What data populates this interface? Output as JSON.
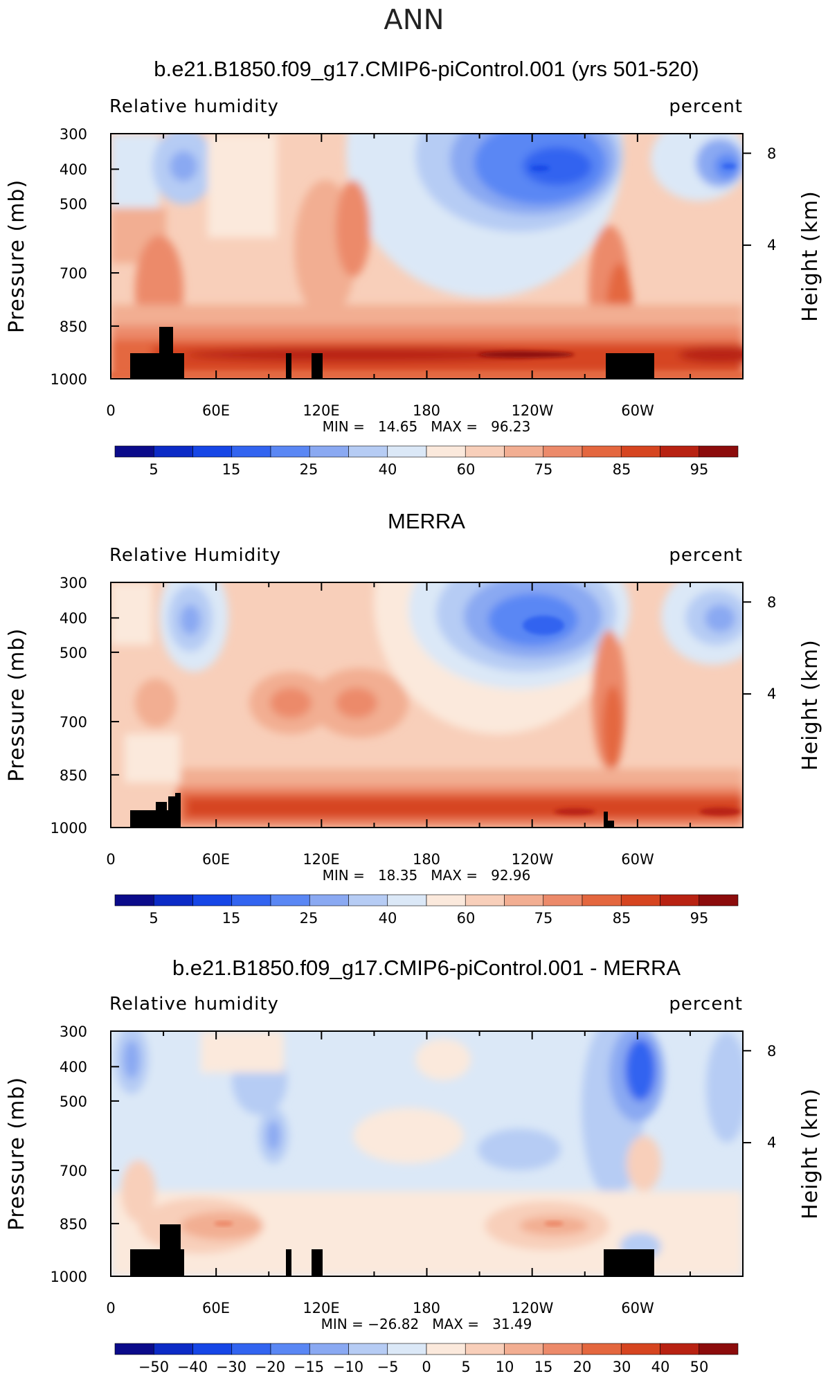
{
  "figure": {
    "supertitle": "ANN"
  },
  "colorbar_sequential": [
    "#0b0b8a",
    "#0c2bc6",
    "#1646e6",
    "#3264f0",
    "#5a87f4",
    "#8aa9f2",
    "#b6ccf4",
    "#dbe8f7",
    "#fbe9dc",
    "#f8cfba",
    "#f2ae92",
    "#ec8a6a",
    "#e4673f",
    "#d64520",
    "#b82212",
    "#8c0c0c"
  ],
  "colorbar_diverging": [
    "#0b0b8a",
    "#0c2bc6",
    "#1646e6",
    "#3264f0",
    "#5a87f4",
    "#8aa9f2",
    "#b6ccf4",
    "#dbe8f7",
    "#fbe9dc",
    "#f8cfba",
    "#f2ae92",
    "#ec8a6a",
    "#e4673f",
    "#d64520",
    "#b82212",
    "#8c0c0c"
  ],
  "chart_data": [
    {
      "type": "heatmap",
      "title": "b.e21.B1850.f09_g17.CMIP6-piControl.001 (yrs 501-520)",
      "left_subtitle": "Relative humidity",
      "right_subtitle": "percent",
      "ylabel": "Pressure (mb)",
      "ylabel_right": "Height (km)",
      "x_ticks": [
        "0",
        "60E",
        "120E",
        "180",
        "120W",
        "60W"
      ],
      "y_ticks": [
        "300",
        "400",
        "500",
        "700",
        "850",
        "1000"
      ],
      "y_right_ticks": [
        "8",
        "4"
      ],
      "xlim": [
        0,
        360
      ],
      "ylim": [
        1000,
        300
      ],
      "minmax": "MIN =   14.65   MAX =   96.23",
      "min": 14.65,
      "max": 96.23,
      "colorbar_labels": [
        "5",
        "15",
        "25",
        "40",
        "60",
        "75",
        "85",
        "95"
      ],
      "colorbar_levels": [
        5,
        10,
        15,
        20,
        25,
        30,
        40,
        50,
        60,
        70,
        75,
        80,
        85,
        90,
        95
      ]
    },
    {
      "type": "heatmap",
      "title": "MERRA",
      "left_subtitle": "Relative Humidity",
      "right_subtitle": "percent",
      "ylabel": "Pressure (mb)",
      "ylabel_right": "Height (km)",
      "x_ticks": [
        "0",
        "60E",
        "120E",
        "180",
        "120W",
        "60W"
      ],
      "y_ticks": [
        "300",
        "400",
        "500",
        "700",
        "850",
        "1000"
      ],
      "y_right_ticks": [
        "8",
        "4"
      ],
      "xlim": [
        0,
        360
      ],
      "ylim": [
        1000,
        300
      ],
      "minmax": "MIN =   18.35   MAX =   92.96",
      "min": 18.35,
      "max": 92.96,
      "colorbar_labels": [
        "5",
        "15",
        "25",
        "40",
        "60",
        "75",
        "85",
        "95"
      ],
      "colorbar_levels": [
        5,
        10,
        15,
        20,
        25,
        30,
        40,
        50,
        60,
        70,
        75,
        80,
        85,
        90,
        95
      ]
    },
    {
      "type": "heatmap",
      "title": "b.e21.B1850.f09_g17.CMIP6-piControl.001 - MERRA",
      "left_subtitle": "Relative humidity",
      "right_subtitle": "percent",
      "ylabel": "Pressure (mb)",
      "ylabel_right": "Height (km)",
      "x_ticks": [
        "0",
        "60E",
        "120E",
        "180",
        "120W",
        "60W"
      ],
      "y_ticks": [
        "300",
        "400",
        "500",
        "700",
        "850",
        "1000"
      ],
      "y_right_ticks": [
        "8",
        "4"
      ],
      "xlim": [
        0,
        360
      ],
      "ylim": [
        1000,
        300
      ],
      "minmax": "MIN = −26.82   MAX =   31.49",
      "min": -26.82,
      "max": 31.49,
      "colorbar_labels": [
        "−50",
        "−40",
        "−30",
        "−20",
        "−15",
        "−10",
        "−5",
        "0",
        "5",
        "10",
        "15",
        "20",
        "30",
        "40",
        "50"
      ],
      "colorbar_levels": [
        -50,
        -40,
        -30,
        -20,
        -15,
        -10,
        -5,
        0,
        5,
        10,
        15,
        20,
        30,
        40,
        50
      ]
    }
  ]
}
